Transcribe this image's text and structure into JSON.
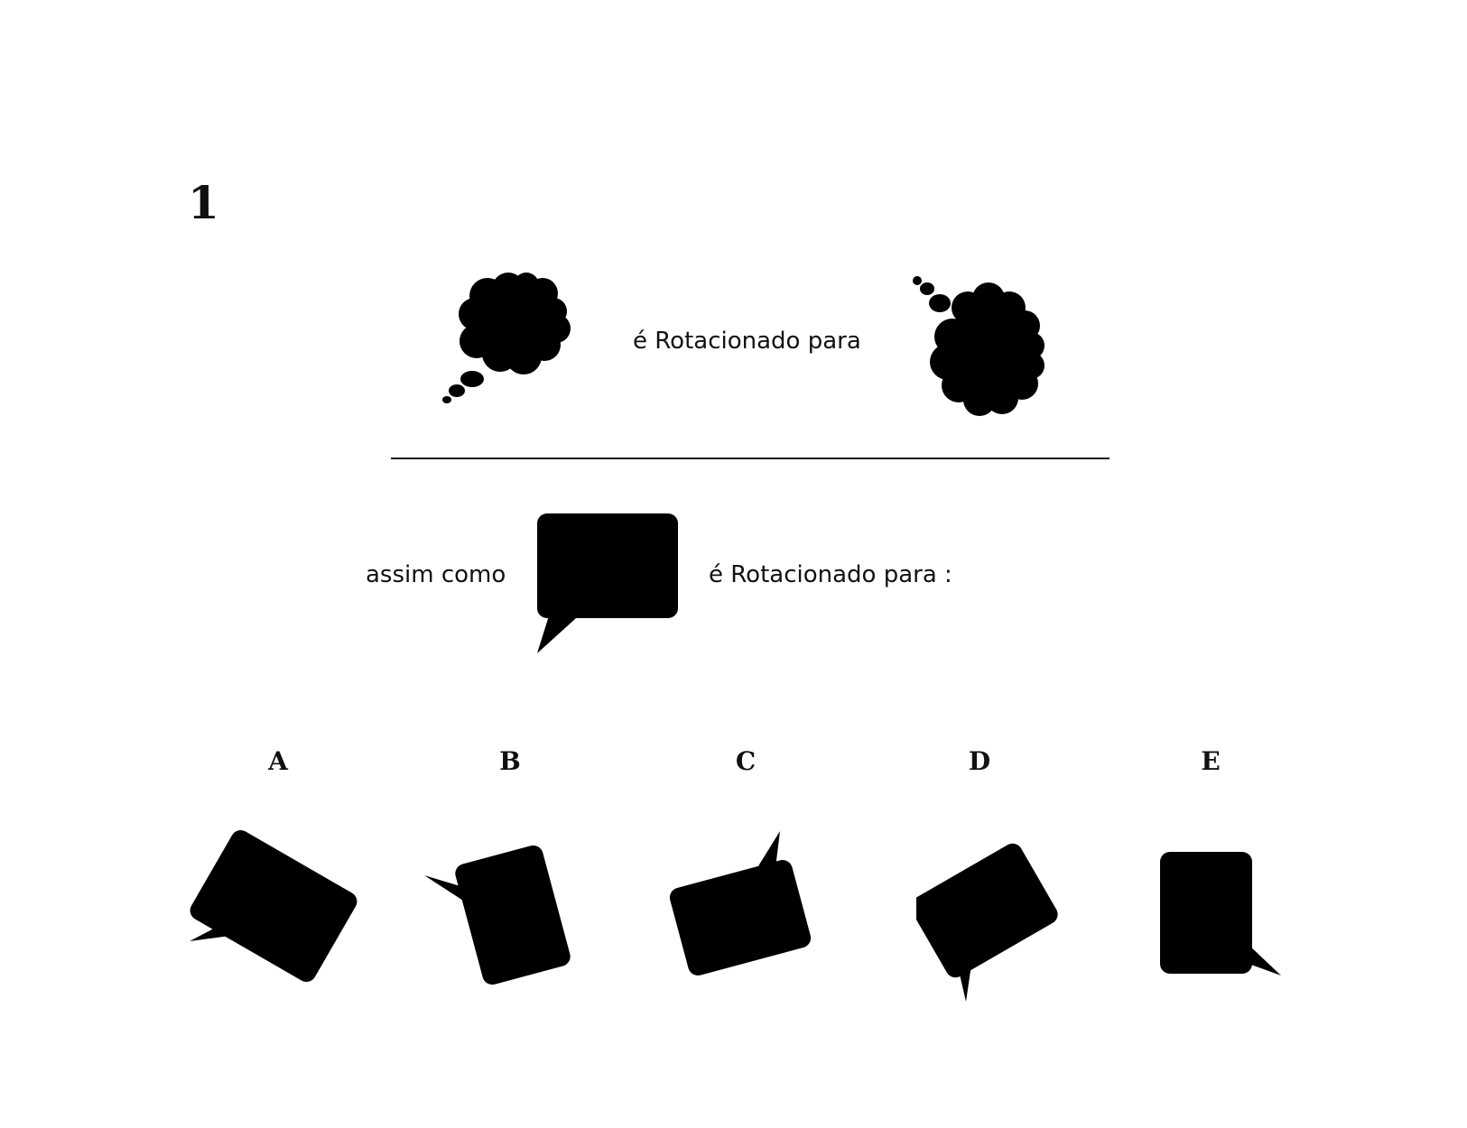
{
  "question": {
    "number": "1"
  },
  "example": {
    "rotated_label": "é Rotacionado para"
  },
  "problem": {
    "prefix_label": "assim como",
    "rotated_label": "é Rotacionado para :"
  },
  "options": [
    {
      "letter": "A"
    },
    {
      "letter": "B"
    },
    {
      "letter": "C"
    },
    {
      "letter": "D"
    },
    {
      "letter": "E"
    }
  ],
  "colors": {
    "shape_fill": "#000000",
    "text": "#111111",
    "background": "#ffffff"
  },
  "icons": {
    "example_source": "thought-bubble-icon",
    "example_target": "thought-bubble-rotated-icon",
    "problem_source": "speech-bubble-icon",
    "options": [
      "speech-bubble-icon",
      "speech-bubble-icon",
      "speech-bubble-icon",
      "speech-bubble-icon",
      "speech-bubble-icon"
    ]
  }
}
